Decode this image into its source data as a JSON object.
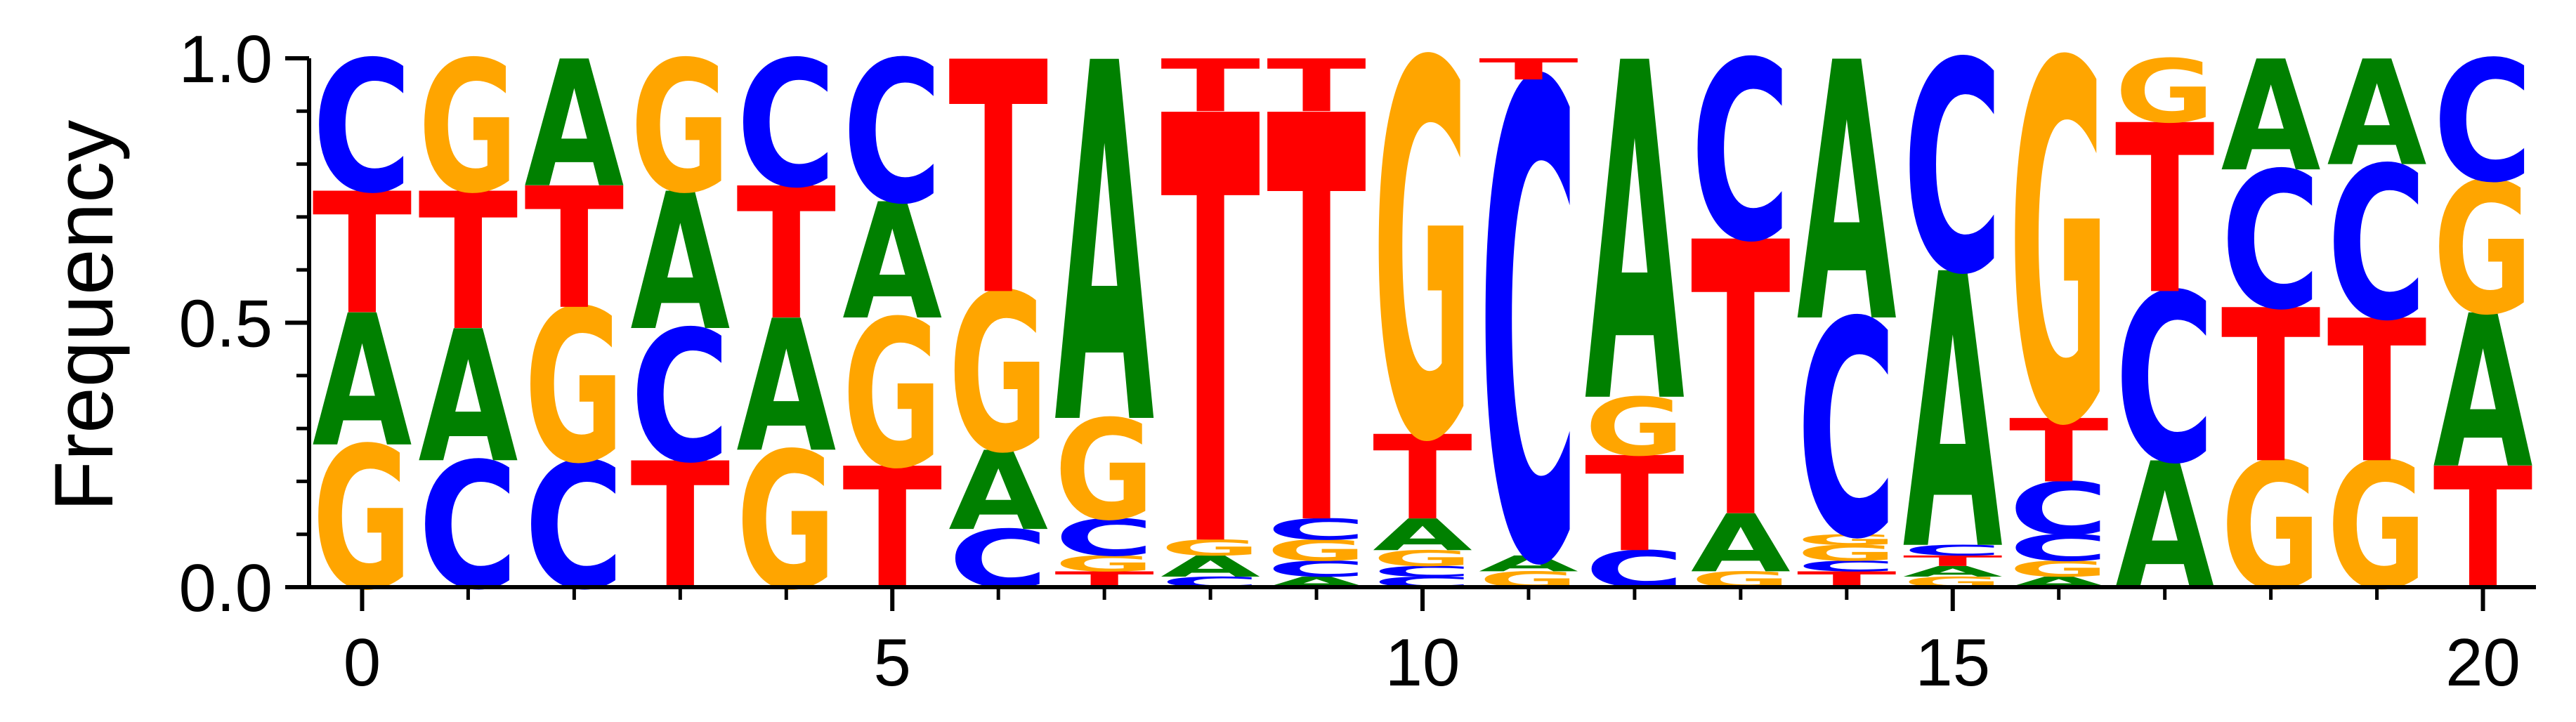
{
  "chart_data": {
    "type": "sequence-logo",
    "ylabel": "Frequency",
    "ylim": [
      0.0,
      1.0
    ],
    "xlim": [
      -0.5,
      20.5
    ],
    "y_ticks": [
      0.0,
      0.5,
      1.0
    ],
    "y_tick_labels": [
      "0.0",
      "0.5",
      "1.0"
    ],
    "x_ticks": [
      0,
      5,
      10,
      15,
      20
    ],
    "x_tick_labels": [
      "0",
      "5",
      "10",
      "15",
      "20"
    ],
    "colors": {
      "A": "#008000",
      "C": "#0000ff",
      "G": "#ffa500",
      "T": "#ff0000"
    },
    "positions": [
      {
        "pos": 0,
        "stack": [
          [
            "G",
            0.27
          ],
          [
            "A",
            0.25
          ],
          [
            "T",
            0.23
          ],
          [
            "C",
            0.25
          ]
        ]
      },
      {
        "pos": 1,
        "stack": [
          [
            "C",
            0.24
          ],
          [
            "A",
            0.25
          ],
          [
            "T",
            0.26
          ],
          [
            "G",
            0.25
          ]
        ]
      },
      {
        "pos": 2,
        "stack": [
          [
            "C",
            0.24
          ],
          [
            "G",
            0.29
          ],
          [
            "T",
            0.23
          ],
          [
            "A",
            0.24
          ]
        ]
      },
      {
        "pos": 3,
        "stack": [
          [
            "T",
            0.24
          ],
          [
            "C",
            0.25
          ],
          [
            "A",
            0.26
          ],
          [
            "G",
            0.25
          ]
        ]
      },
      {
        "pos": 4,
        "stack": [
          [
            "G",
            0.26
          ],
          [
            "A",
            0.25
          ],
          [
            "T",
            0.25
          ],
          [
            "C",
            0.24
          ]
        ]
      },
      {
        "pos": 5,
        "stack": [
          [
            "T",
            0.23
          ],
          [
            "G",
            0.28
          ],
          [
            "A",
            0.22
          ],
          [
            "C",
            0.27
          ]
        ]
      },
      {
        "pos": 6,
        "stack": [
          [
            "C",
            0.11
          ],
          [
            "A",
            0.15
          ],
          [
            "G",
            0.3
          ],
          [
            "T",
            0.44
          ]
        ]
      },
      {
        "pos": 7,
        "stack": [
          [
            "T",
            0.03
          ],
          [
            "G",
            0.03
          ],
          [
            "C",
            0.07
          ],
          [
            "G",
            0.19
          ],
          [
            "A",
            0.68
          ]
        ]
      },
      {
        "pos": 8,
        "stack": [
          [
            "C",
            0.02
          ],
          [
            "A",
            0.04
          ],
          [
            "G",
            0.03
          ],
          [
            "T",
            0.81
          ],
          [
            "T",
            0.1
          ]
        ]
      },
      {
        "pos": 9,
        "stack": [
          [
            "A",
            0.02
          ],
          [
            "C",
            0.03
          ],
          [
            "G",
            0.04
          ],
          [
            "C",
            0.04
          ],
          [
            "T",
            0.77
          ],
          [
            "T",
            0.1
          ]
        ]
      },
      {
        "pos": 10,
        "stack": [
          [
            "C",
            0.02
          ],
          [
            "C",
            0.02
          ],
          [
            "G",
            0.03
          ],
          [
            "A",
            0.06
          ],
          [
            "T",
            0.16
          ],
          [
            "G",
            0.71
          ]
        ]
      },
      {
        "pos": 11,
        "stack": [
          [
            "G",
            0.03
          ],
          [
            "A",
            0.03
          ],
          [
            "C",
            0.9
          ],
          [
            "T",
            0.04
          ]
        ]
      },
      {
        "pos": 12,
        "stack": [
          [
            "C",
            0.07
          ],
          [
            "T",
            0.18
          ],
          [
            "G",
            0.11
          ],
          [
            "A",
            0.64
          ]
        ]
      },
      {
        "pos": 13,
        "stack": [
          [
            "G",
            0.03
          ],
          [
            "A",
            0.11
          ],
          [
            "T",
            0.52
          ],
          [
            "C",
            0.34
          ]
        ]
      },
      {
        "pos": 14,
        "stack": [
          [
            "T",
            0.03
          ],
          [
            "C",
            0.02
          ],
          [
            "G",
            0.03
          ],
          [
            "G",
            0.02
          ],
          [
            "C",
            0.41
          ],
          [
            "A",
            0.49
          ]
        ]
      },
      {
        "pos": 15,
        "stack": [
          [
            "G",
            0.02
          ],
          [
            "A",
            0.02
          ],
          [
            "T",
            0.02
          ],
          [
            "C",
            0.02
          ],
          [
            "A",
            0.52
          ],
          [
            "C",
            0.4
          ]
        ]
      },
      {
        "pos": 16,
        "stack": [
          [
            "A",
            0.02
          ],
          [
            "G",
            0.03
          ],
          [
            "C",
            0.05
          ],
          [
            "C",
            0.1
          ],
          [
            "T",
            0.12
          ],
          [
            "G",
            0.68
          ]
        ]
      },
      {
        "pos": 17,
        "stack": [
          [
            "A",
            0.24
          ],
          [
            "C",
            0.32
          ],
          [
            "T",
            0.32
          ],
          [
            "G",
            0.12
          ]
        ]
      },
      {
        "pos": 18,
        "stack": [
          [
            "G",
            0.24
          ],
          [
            "T",
            0.29
          ],
          [
            "C",
            0.26
          ],
          [
            "A",
            0.21
          ]
        ]
      },
      {
        "pos": 19,
        "stack": [
          [
            "G",
            0.24
          ],
          [
            "T",
            0.27
          ],
          [
            "C",
            0.29
          ],
          [
            "A",
            0.2
          ]
        ]
      },
      {
        "pos": 20,
        "stack": [
          [
            "T",
            0.23
          ],
          [
            "A",
            0.29
          ],
          [
            "G",
            0.25
          ],
          [
            "C",
            0.23
          ]
        ]
      }
    ]
  }
}
